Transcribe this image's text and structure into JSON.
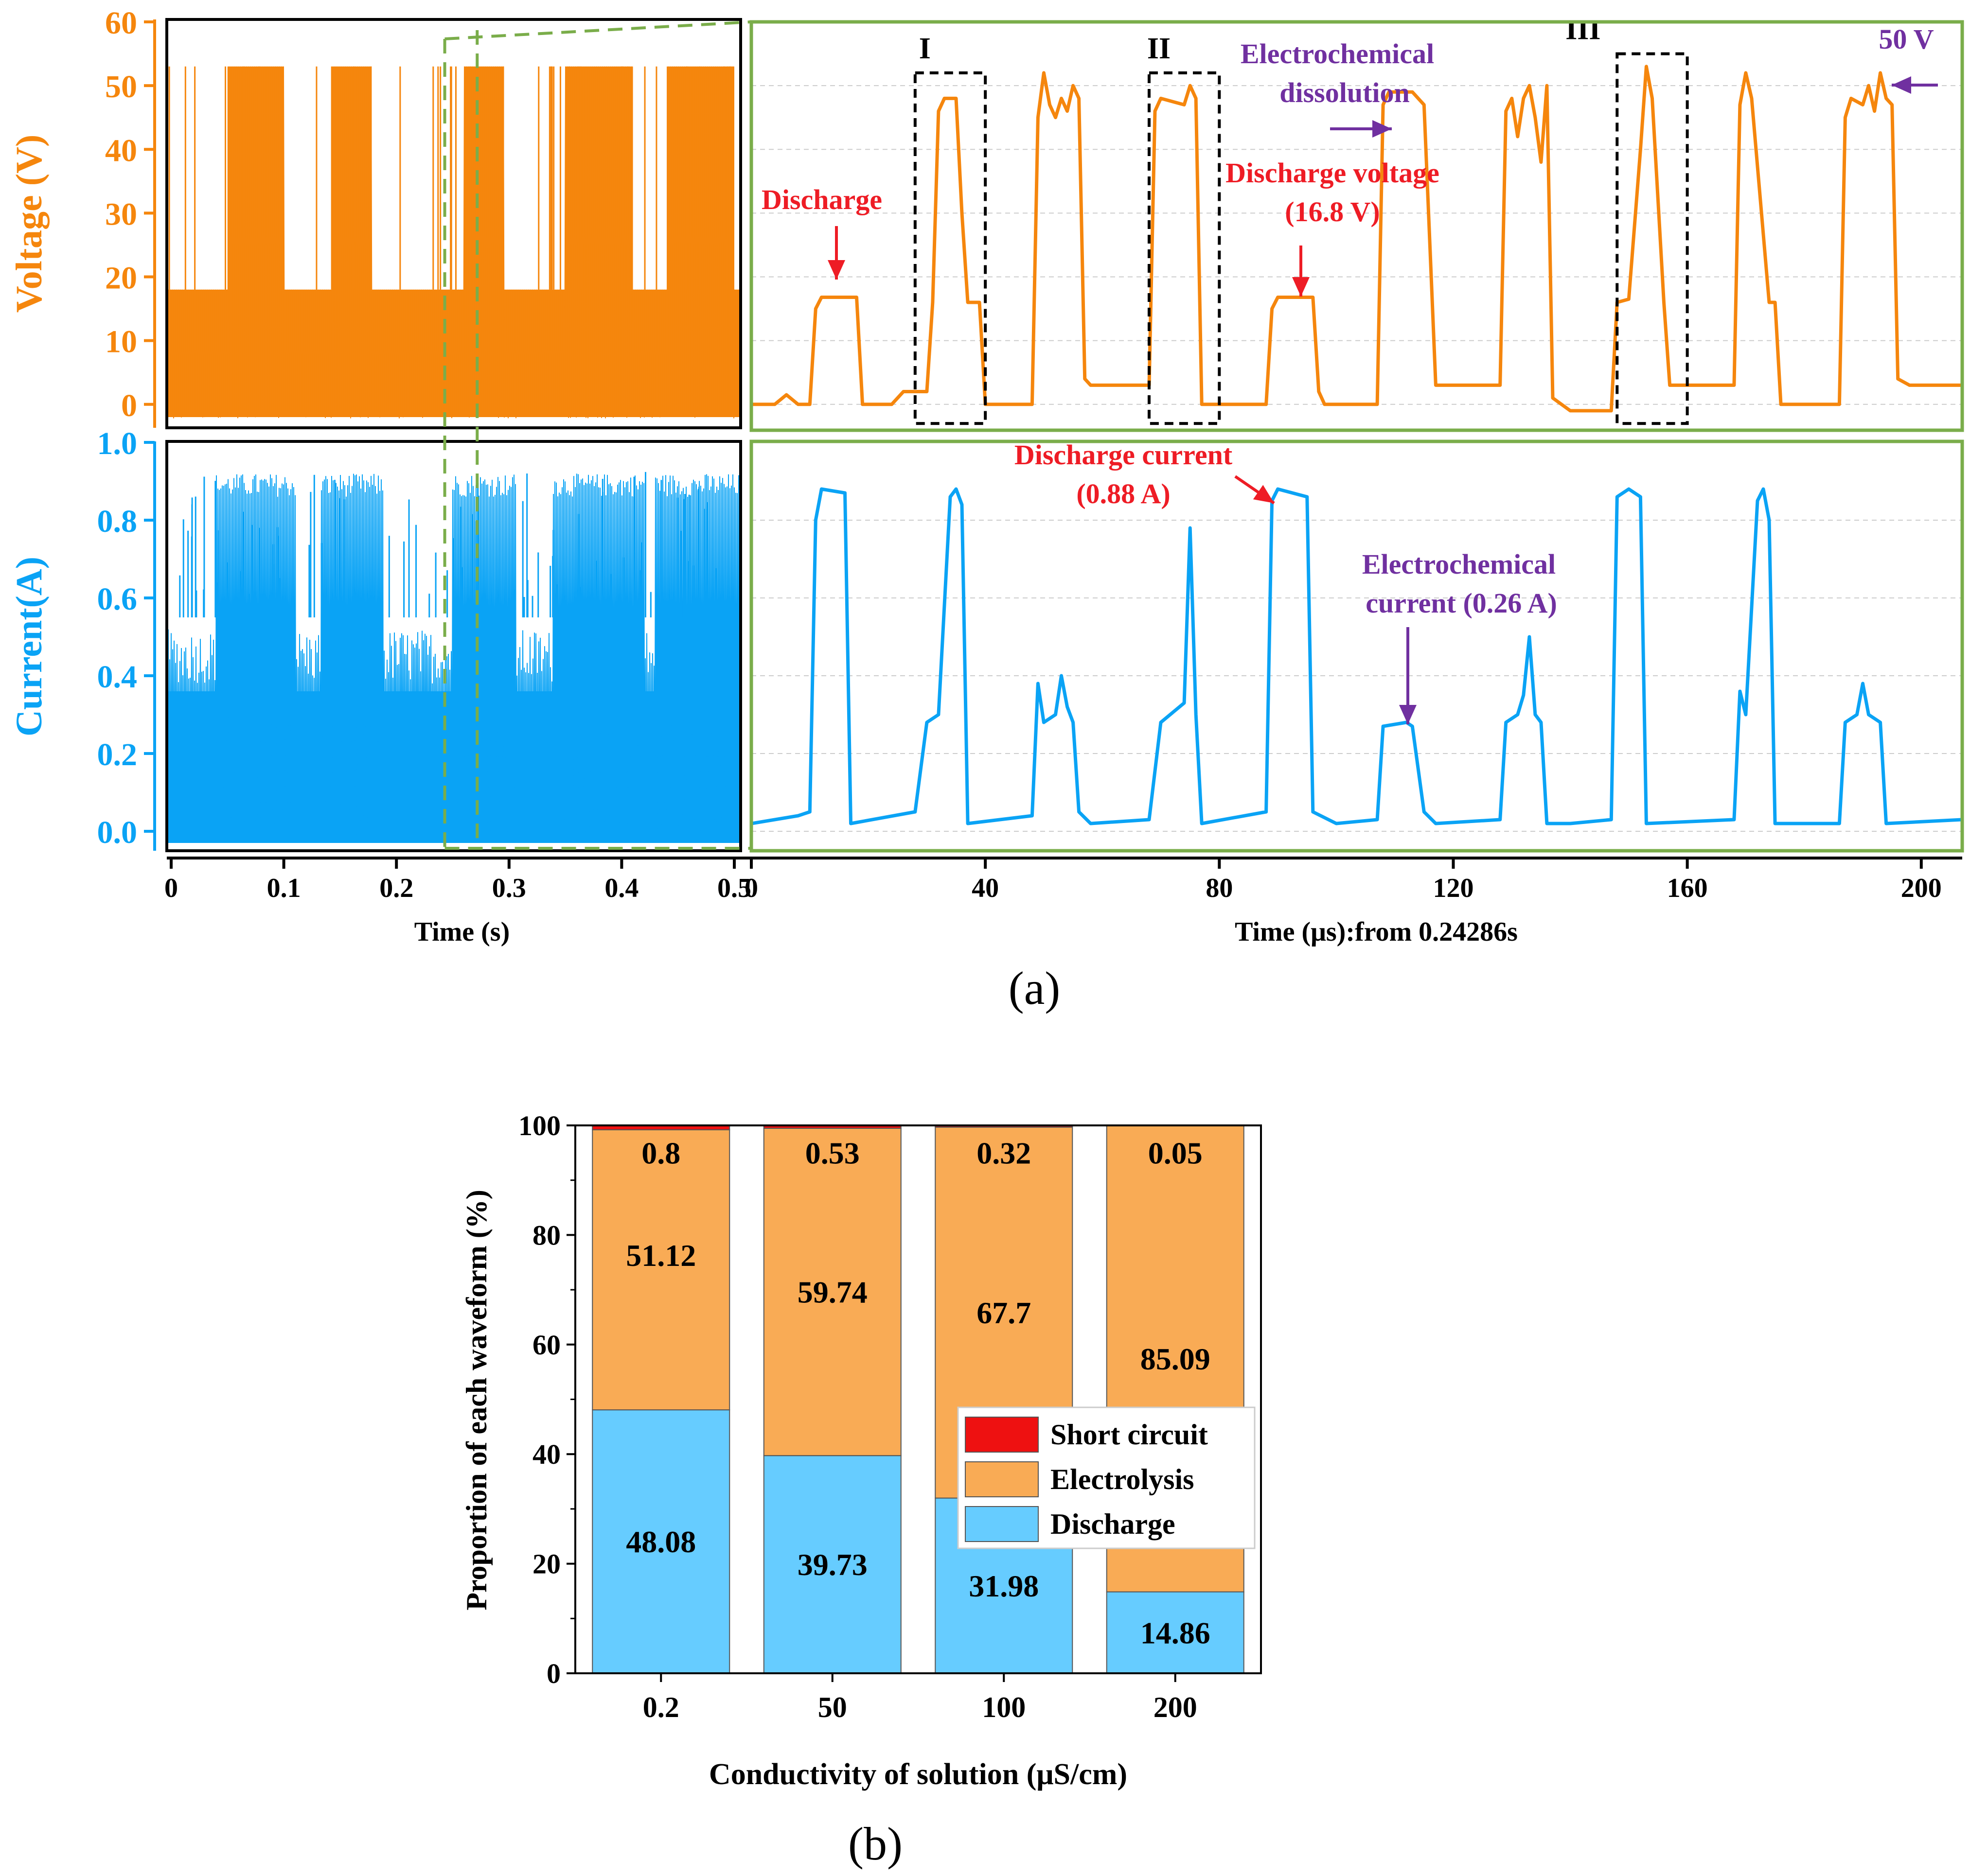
{
  "colors": {
    "voltage": "#f5860d",
    "current": "#0aa3f5",
    "box_green": "#7aad4a",
    "annot_red": "#ee1c25",
    "annot_purple": "#7030a0",
    "short_circuit": "#ee1111",
    "electrolysis": "#f9ab55",
    "discharge": "#66ccff"
  },
  "panel_labels": {
    "a": "(a)",
    "b": "(b)"
  },
  "chart_data": [
    {
      "id": "voltage_overview",
      "type": "line",
      "ylabel": "Voltage (V)",
      "ylim": [
        -2,
        60
      ],
      "yticks": [
        "0",
        "10",
        "20",
        "30",
        "40",
        "50",
        "60"
      ],
      "xlim": [
        0,
        0.5
      ],
      "description_of_signal": "bursty pulse train",
      "bursts": [
        {
          "x_start": 0.05,
          "x_end": 0.1,
          "high": 53
        },
        {
          "x_start": 0.143,
          "x_end": 0.178,
          "high": 53
        },
        {
          "x_start": 0.26,
          "x_end": 0.295,
          "high": 53
        },
        {
          "x_start": 0.35,
          "x_end": 0.41,
          "high": 53
        },
        {
          "x_start": 0.44,
          "x_end": 0.5,
          "high": 53
        }
      ],
      "baseline_band": [
        -2,
        18
      ]
    },
    {
      "id": "current_overview",
      "type": "line",
      "ylabel": "Current(A)",
      "ylim": [
        -0.05,
        1.0
      ],
      "yticks": [
        "0.0",
        "0.2",
        "0.4",
        "0.6",
        "0.8",
        "1.0"
      ],
      "xlim": [
        0,
        0.5
      ],
      "xlabel": "Time (s)",
      "xticks": [
        "0",
        "0.1",
        "0.2",
        "0.3",
        "0.4",
        "0.5"
      ],
      "high_band": 0.92,
      "plateau": 0.36
    },
    {
      "id": "voltage_zoom",
      "type": "line",
      "xlim": [
        0,
        207
      ],
      "ylim": [
        -2,
        60
      ],
      "points": [
        [
          0,
          0
        ],
        [
          4,
          0
        ],
        [
          6,
          1.5
        ],
        [
          8,
          0
        ],
        [
          10,
          0
        ],
        [
          11,
          15
        ],
        [
          12,
          16.8
        ],
        [
          18,
          16.8
        ],
        [
          19,
          0
        ],
        [
          24,
          0
        ],
        [
          26,
          2
        ],
        [
          30,
          2
        ],
        [
          31,
          16
        ],
        [
          32,
          46
        ],
        [
          33,
          48
        ],
        [
          35,
          48
        ],
        [
          36,
          30
        ],
        [
          37,
          16
        ],
        [
          39,
          16
        ],
        [
          40,
          0
        ],
        [
          48,
          0
        ],
        [
          49,
          45
        ],
        [
          50,
          52
        ],
        [
          51,
          47
        ],
        [
          52,
          45
        ],
        [
          53,
          48
        ],
        [
          54,
          46
        ],
        [
          55,
          50
        ],
        [
          56,
          48
        ],
        [
          57,
          4
        ],
        [
          58,
          3
        ],
        [
          68,
          3
        ],
        [
          69,
          46
        ],
        [
          70,
          48
        ],
        [
          74,
          47
        ],
        [
          75,
          50
        ],
        [
          76,
          48
        ],
        [
          77,
          0
        ],
        [
          88,
          0
        ],
        [
          89,
          15
        ],
        [
          90,
          16.8
        ],
        [
          96,
          16.8
        ],
        [
          97,
          2
        ],
        [
          98,
          0
        ],
        [
          100,
          0
        ],
        [
          107,
          0
        ],
        [
          108,
          47
        ],
        [
          109,
          49
        ],
        [
          113,
          49
        ],
        [
          114,
          48
        ],
        [
          115,
          47
        ],
        [
          117,
          3
        ],
        [
          128,
          3
        ],
        [
          129,
          46
        ],
        [
          130,
          48
        ],
        [
          131,
          42
        ],
        [
          132,
          48
        ],
        [
          133,
          50
        ],
        [
          134,
          45
        ],
        [
          135,
          38
        ],
        [
          136,
          50
        ],
        [
          137,
          1
        ],
        [
          140,
          -1
        ],
        [
          147,
          -1
        ],
        [
          148,
          16
        ],
        [
          150,
          16.5
        ],
        [
          152,
          40
        ],
        [
          153,
          53
        ],
        [
          154,
          48
        ],
        [
          156,
          16
        ],
        [
          157,
          3
        ],
        [
          168,
          3
        ],
        [
          169,
          47
        ],
        [
          170,
          52
        ],
        [
          171,
          48
        ],
        [
          174,
          16
        ],
        [
          175,
          16
        ],
        [
          176,
          0
        ],
        [
          186,
          0
        ],
        [
          187,
          45
        ],
        [
          188,
          48
        ],
        [
          190,
          47
        ],
        [
          191,
          50
        ],
        [
          192,
          46
        ],
        [
          193,
          52
        ],
        [
          194,
          48
        ],
        [
          195,
          47
        ],
        [
          196,
          4
        ],
        [
          198,
          3
        ],
        [
          207,
          3
        ]
      ],
      "annotations": [
        {
          "text": "Discharge",
          "color": "red"
        },
        {
          "text": "Discharge voltage",
          "color": "red"
        },
        {
          "text": "(16.8 V)",
          "color": "red"
        },
        {
          "text": "Electrochemical",
          "color": "purple"
        },
        {
          "text": "dissolution",
          "color": "purple"
        },
        {
          "text": "50 V",
          "color": "purple"
        }
      ],
      "box_labels": [
        "I",
        "II",
        "III"
      ],
      "boxes": [
        {
          "label": "I",
          "x": [
            28,
            40
          ],
          "y": [
            -3,
            52
          ]
        },
        {
          "label": "II",
          "x": [
            68,
            80
          ],
          "y": [
            -3,
            52
          ]
        },
        {
          "label": "III",
          "x": [
            148,
            160
          ],
          "y": [
            -3,
            55
          ]
        }
      ]
    },
    {
      "id": "current_zoom",
      "type": "line",
      "xlim": [
        0,
        207
      ],
      "ylim": [
        -0.05,
        1.0
      ],
      "xlabel": "Time (μs):from 0.24286s",
      "xticks": [
        "0",
        "40",
        "80",
        "120",
        "160",
        "200"
      ],
      "xtick_values": [
        0,
        40,
        80,
        120,
        160,
        200
      ],
      "points": [
        [
          0,
          0.02
        ],
        [
          8,
          0.04
        ],
        [
          10,
          0.05
        ],
        [
          11,
          0.8
        ],
        [
          12,
          0.88
        ],
        [
          16,
          0.87
        ],
        [
          17,
          0.02
        ],
        [
          28,
          0.05
        ],
        [
          30,
          0.28
        ],
        [
          32,
          0.3
        ],
        [
          34,
          0.86
        ],
        [
          35,
          0.88
        ],
        [
          36,
          0.84
        ],
        [
          37,
          0.02
        ],
        [
          48,
          0.04
        ],
        [
          49,
          0.38
        ],
        [
          50,
          0.28
        ],
        [
          52,
          0.3
        ],
        [
          53,
          0.4
        ],
        [
          54,
          0.32
        ],
        [
          55,
          0.28
        ],
        [
          56,
          0.05
        ],
        [
          58,
          0.02
        ],
        [
          68,
          0.03
        ],
        [
          70,
          0.28
        ],
        [
          74,
          0.33
        ],
        [
          75,
          0.78
        ],
        [
          76,
          0.3
        ],
        [
          77,
          0.02
        ],
        [
          88,
          0.05
        ],
        [
          89,
          0.85
        ],
        [
          90,
          0.88
        ],
        [
          95,
          0.86
        ],
        [
          96,
          0.05
        ],
        [
          100,
          0.02
        ],
        [
          107,
          0.03
        ],
        [
          108,
          0.27
        ],
        [
          112,
          0.28
        ],
        [
          113,
          0.27
        ],
        [
          115,
          0.05
        ],
        [
          117,
          0.02
        ],
        [
          128,
          0.03
        ],
        [
          129,
          0.28
        ],
        [
          131,
          0.3
        ],
        [
          132,
          0.35
        ],
        [
          133,
          0.5
        ],
        [
          134,
          0.3
        ],
        [
          135,
          0.28
        ],
        [
          136,
          0.02
        ],
        [
          140,
          0.02
        ],
        [
          147,
          0.03
        ],
        [
          148,
          0.86
        ],
        [
          150,
          0.88
        ],
        [
          152,
          0.86
        ],
        [
          153,
          0.02
        ],
        [
          168,
          0.03
        ],
        [
          169,
          0.36
        ],
        [
          170,
          0.3
        ],
        [
          172,
          0.85
        ],
        [
          173,
          0.88
        ],
        [
          174,
          0.8
        ],
        [
          175,
          0.02
        ],
        [
          186,
          0.02
        ],
        [
          187,
          0.28
        ],
        [
          189,
          0.3
        ],
        [
          190,
          0.38
        ],
        [
          191,
          0.3
        ],
        [
          193,
          0.28
        ],
        [
          194,
          0.02
        ],
        [
          207,
          0.03
        ]
      ],
      "annotations": [
        {
          "text": "Discharge current",
          "color": "red"
        },
        {
          "text": "(0.88 A)",
          "color": "red"
        },
        {
          "text": "Electrochemical",
          "color": "purple"
        },
        {
          "text": "current (0.26 A)",
          "color": "purple"
        }
      ]
    },
    {
      "id": "waveform_proportion",
      "type": "bar",
      "stacked": true,
      "categories": [
        "0.2",
        "50",
        "100",
        "200"
      ],
      "series": [
        {
          "name": "Discharge",
          "values": [
            48.08,
            39.73,
            31.98,
            14.86
          ]
        },
        {
          "name": "Electrolysis",
          "values": [
            51.12,
            59.74,
            67.7,
            85.09
          ]
        },
        {
          "name": "Short circuit",
          "values": [
            0.8,
            0.53,
            0.32,
            0.05
          ]
        }
      ],
      "bar_labels": {
        "Discharge": [
          "48.08",
          "39.73",
          "31.98",
          "14.86"
        ],
        "Electrolysis": [
          "51.12",
          "59.74",
          "67.7",
          "85.09"
        ],
        "Short circuit": [
          "0.8",
          "0.53",
          "0.32",
          "0.05"
        ]
      },
      "xlabel": "Conductivity of solution (μS/cm)",
      "ylabel": "Proportion of each waveform (%)",
      "ylim": [
        0,
        100
      ],
      "yticks": [
        "0",
        "20",
        "40",
        "60",
        "80",
        "100"
      ],
      "legend_position": "center-right",
      "legend": [
        "Short circuit",
        "Electrolysis",
        "Discharge"
      ]
    }
  ]
}
